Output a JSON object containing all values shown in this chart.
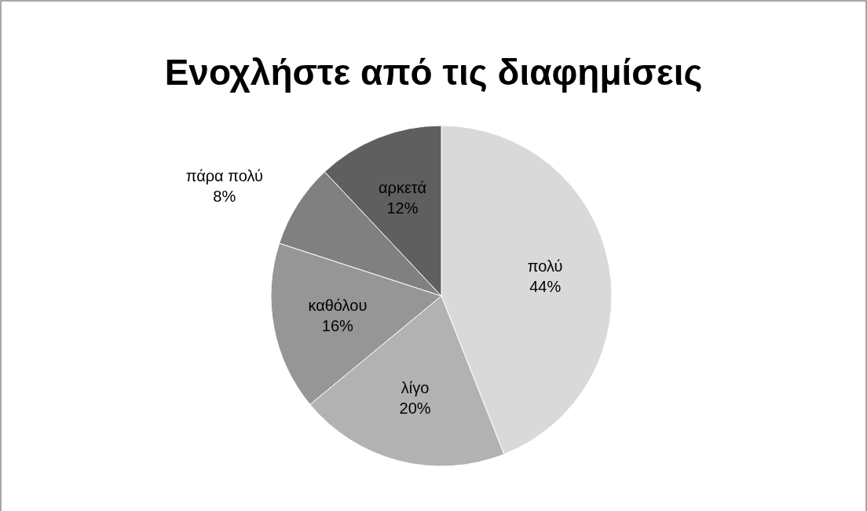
{
  "chart_data": {
    "type": "pie",
    "title": "Ενοχλήστε από τις διαφημίσεις",
    "categories": [
      "πολύ",
      "λίγο",
      "καθόλου",
      "πάρα πολύ",
      "αρκετά"
    ],
    "values": [
      44,
      20,
      16,
      8,
      12
    ],
    "colors": [
      "#d9d9d9",
      "#b2b2b2",
      "#969696",
      "#808080",
      "#5f5f5f"
    ],
    "value_labels": [
      "44%",
      "20%",
      "16%",
      "8%",
      "12%"
    ]
  }
}
